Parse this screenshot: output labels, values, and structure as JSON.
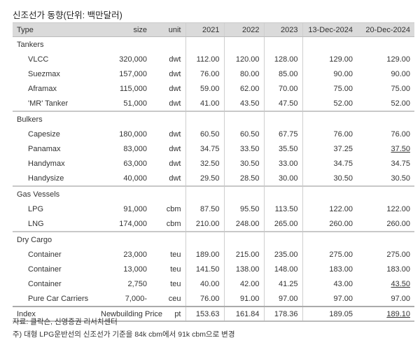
{
  "title": "신조선가 동향(단위: 백만달러)",
  "columns": [
    "Type",
    "size",
    "unit",
    "2021",
    "2022",
    "2023",
    "13-Dec-2024",
    "20-Dec-2024"
  ],
  "groups": [
    {
      "name": "Tankers",
      "rows": [
        [
          "VLCC",
          "320,000",
          "dwt",
          "112.00",
          "120.00",
          "128.00",
          "129.00",
          "129.00"
        ],
        [
          "Suezmax",
          "157,000",
          "dwt",
          "76.00",
          "80.00",
          "85.00",
          "90.00",
          "90.00"
        ],
        [
          "Aframax",
          "115,000",
          "dwt",
          "59.00",
          "62.00",
          "70.00",
          "75.00",
          "75.00"
        ],
        [
          "'MR' Tanker",
          "51,000",
          "dwt",
          "41.00",
          "43.50",
          "47.50",
          "52.00",
          "52.00"
        ]
      ]
    },
    {
      "name": "Bulkers",
      "rows": [
        [
          "Capesize",
          "180,000",
          "dwt",
          "60.50",
          "60.50",
          "67.75",
          "76.00",
          "76.00"
        ],
        [
          "Panamax",
          "83,000",
          "dwt",
          "34.75",
          "33.50",
          "35.50",
          "37.25",
          "37.50"
        ],
        [
          "Handymax",
          "63,000",
          "dwt",
          "32.50",
          "30.50",
          "33.00",
          "34.75",
          "34.75"
        ],
        [
          "Handysize",
          "40,000",
          "dwt",
          "29.50",
          "28.50",
          "30.00",
          "30.50",
          "30.50"
        ]
      ]
    },
    {
      "name": "Gas Vessels",
      "rows": [
        [
          "LPG",
          "91,000",
          "cbm",
          "87.50",
          "95.50",
          "113.50",
          "122.00",
          "122.00"
        ],
        [
          "LNG",
          "174,000",
          "cbm",
          "210.00",
          "248.00",
          "265.00",
          "260.00",
          "260.00"
        ]
      ]
    },
    {
      "name": "Dry Cargo",
      "rows": [
        [
          "Container",
          "23,000",
          "teu",
          "189.00",
          "215.00",
          "235.00",
          "275.00",
          "275.00"
        ],
        [
          "Container",
          "13,000",
          "teu",
          "141.50",
          "138.00",
          "148.00",
          "183.00",
          "183.00"
        ],
        [
          "Container",
          "2,750",
          "teu",
          "40.00",
          "42.00",
          "41.25",
          "43.00",
          "43.50"
        ],
        [
          "Pure Car Carriers",
          "7,000-",
          "ceu",
          "76.00",
          "91.00",
          "97.00",
          "97.00",
          "97.00"
        ]
      ]
    }
  ],
  "index_row": [
    "Index",
    "Newbuilding Price",
    "pt",
    "153.63",
    "161.84",
    "178.36",
    "189.05",
    "189.10"
  ],
  "underlined": [
    "Bulkers|Panamax",
    "Dry Cargo|2,750"
  ],
  "footnotes": [
    "자료: 클락슨, 신영증권 리서치센터",
    "주) 대형 LPG운반선의 신조선가 기준을 84k cbm에서 91k cbm으로 변경"
  ]
}
